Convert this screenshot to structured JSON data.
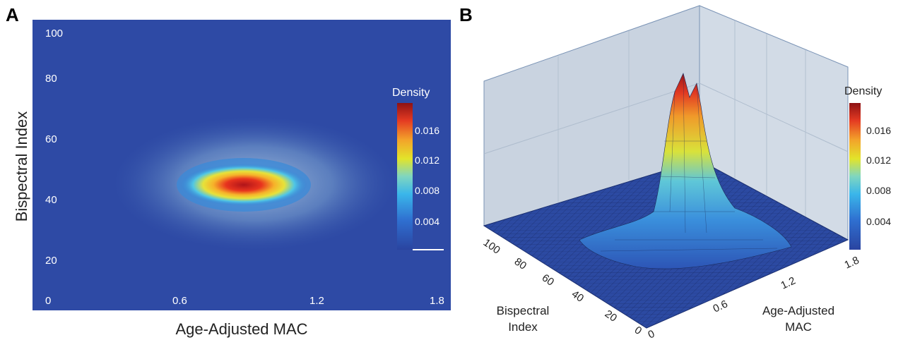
{
  "panels": {
    "a_label": "A",
    "b_label": "B"
  },
  "colors": {
    "low": "#2a4da8",
    "mid": "#34c0e8",
    "high": "#f0e020",
    "peak": "#9a1416",
    "wall": "#c9d3e0",
    "floor": "#2b4aa0"
  },
  "chart_data": [
    {
      "type": "heatmap",
      "panel": "A",
      "title": "",
      "xlabel": "Age-Adjusted MAC",
      "ylabel": "Bispectral Index",
      "xlim": [
        0,
        1.8
      ],
      "ylim": [
        10,
        100
      ],
      "x_ticks": [
        0,
        0.6,
        1.2,
        1.8
      ],
      "x_tick_labels": [
        "0",
        "0.6",
        "1.2",
        "1.8"
      ],
      "y_ticks": [
        20,
        40,
        60,
        80,
        100
      ],
      "y_tick_labels": [
        "20",
        "40",
        "60",
        "80",
        "100"
      ],
      "peak": {
        "x": 0.85,
        "y": 43,
        "density": 0.018
      },
      "colorbar": {
        "label": "Density",
        "range": [
          0,
          0.018
        ],
        "ticks": [
          0.004,
          0.008,
          0.012,
          0.016
        ],
        "tick_labels": [
          "0.004",
          "0.008",
          "0.012",
          "0.016"
        ]
      }
    },
    {
      "type": "surface",
      "panel": "B",
      "title": "",
      "xlabel_lines": [
        "Age-Adjusted",
        "MAC"
      ],
      "ylabel_lines": [
        "Bispectral",
        "Index"
      ],
      "zlabel": "Density",
      "x_ticks": [
        0,
        0.6,
        1.2,
        1.8
      ],
      "x_tick_labels": [
        "0",
        "0.6",
        "1.2",
        "1.8"
      ],
      "y_ticks": [
        0,
        20,
        40,
        60,
        80,
        100
      ],
      "y_tick_labels": [
        "0",
        "20",
        "40",
        "60",
        "80",
        "100"
      ],
      "peak": {
        "x": 0.85,
        "y": 43,
        "density": 0.018
      },
      "colorbar": {
        "label": "Density",
        "range": [
          0,
          0.018
        ],
        "ticks": [
          0.004,
          0.008,
          0.012,
          0.016
        ],
        "tick_labels": [
          "0.004",
          "0.008",
          "0.012",
          "0.016"
        ]
      }
    }
  ]
}
